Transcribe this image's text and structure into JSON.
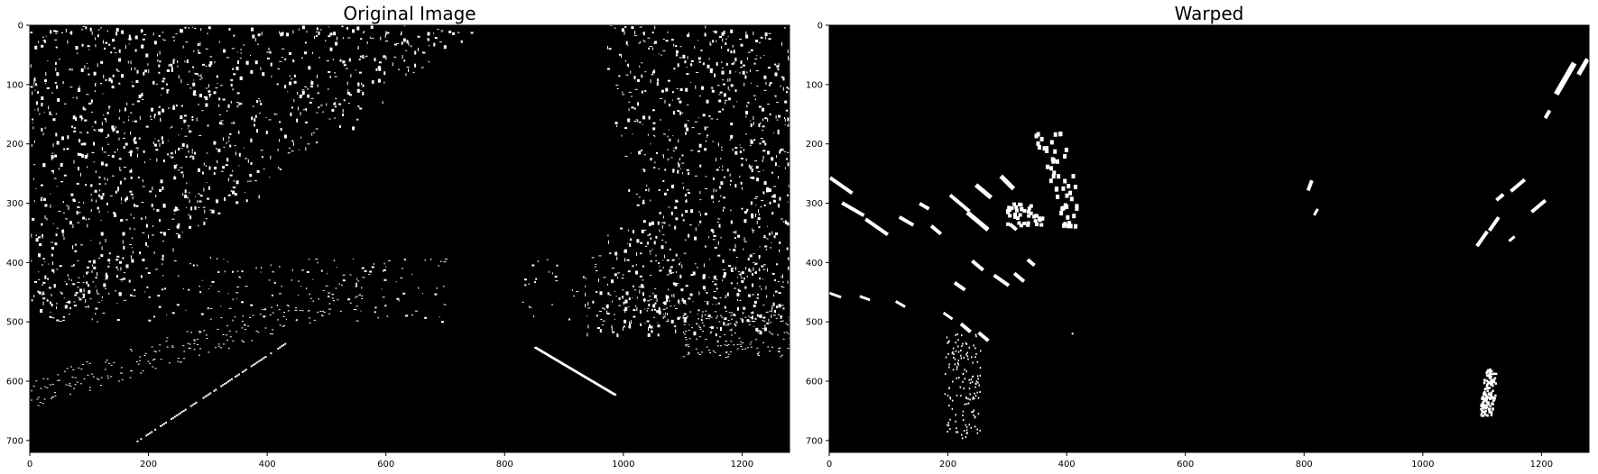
{
  "panels": [
    {
      "title": "Original Image",
      "x_ticks": [
        "0",
        "200",
        "400",
        "600",
        "800",
        "1000",
        "1200"
      ],
      "y_ticks": [
        "0",
        "100",
        "200",
        "300",
        "400",
        "500",
        "600",
        "700"
      ],
      "x_range": [
        0,
        1280
      ],
      "y_range": [
        0,
        720
      ],
      "content": "binary-threshold-road-scene"
    },
    {
      "title": "Warped",
      "x_ticks": [
        "0",
        "200",
        "400",
        "600",
        "800",
        "1000",
        "1200"
      ],
      "y_ticks": [
        "0",
        "100",
        "200",
        "300",
        "400",
        "500",
        "600",
        "700"
      ],
      "x_range": [
        0,
        1280
      ],
      "y_range": [
        0,
        720
      ],
      "content": "binary-birds-eye-lane-view"
    }
  ],
  "colors": {
    "background": "#ffffff",
    "image_bg": "#000000",
    "foreground": "#ffffff",
    "axis": "#000000"
  }
}
